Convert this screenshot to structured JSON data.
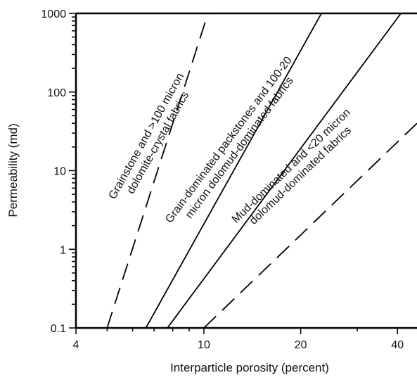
{
  "chart_data": {
    "type": "line",
    "title": "",
    "xlabel": "Interparticle porosity (percent)",
    "ylabel": "Permeability (md)",
    "x_scale": "log",
    "y_scale": "log",
    "xlim": [
      4,
      46
    ],
    "ylim": [
      0.1,
      1000
    ],
    "x_ticks": [
      {
        "value": 4,
        "label": "4"
      },
      {
        "value": 10,
        "label": "10"
      },
      {
        "value": 20,
        "label": "20"
      },
      {
        "value": 40,
        "label": "40"
      }
    ],
    "y_ticks": [
      {
        "value": 0.1,
        "label": "0.1"
      },
      {
        "value": 1,
        "label": "1"
      },
      {
        "value": 10,
        "label": "10"
      },
      {
        "value": 100,
        "label": "100"
      },
      {
        "value": 1000,
        "label": "1000"
      }
    ],
    "grid": false,
    "series": [
      {
        "style": "dashed",
        "color": "#000000",
        "x": [
          5.0,
          10.3
        ],
        "y": [
          0.1,
          1000
        ]
      },
      {
        "style": "solid",
        "color": "#000000",
        "x": [
          6.6,
          23.2
        ],
        "y": [
          0.1,
          1000
        ]
      },
      {
        "style": "solid",
        "color": "#000000",
        "x": [
          7.7,
          41.0
        ],
        "y": [
          0.1,
          1000
        ]
      },
      {
        "style": "dashed",
        "color": "#000000",
        "x": [
          10.0,
          46.0
        ],
        "y": [
          0.1,
          40
        ]
      }
    ],
    "annotations": [
      {
        "text_lines": [
          "Grainstone and >100 micron",
          "dolomite-crystal fabrics"
        ],
        "anchor_x": 6.9,
        "anchor_y": 25
      },
      {
        "text_lines": [
          "Grain-dominated packstones and 100-20",
          "micron dolomud-dominated fabrics"
        ],
        "anchor_x": 12.4,
        "anchor_y": 22
      },
      {
        "text_lines": [
          "Mud-dominated and <20 micron",
          "dolomud-dominated fabrics"
        ],
        "anchor_x": 19.3,
        "anchor_y": 10
      }
    ]
  }
}
